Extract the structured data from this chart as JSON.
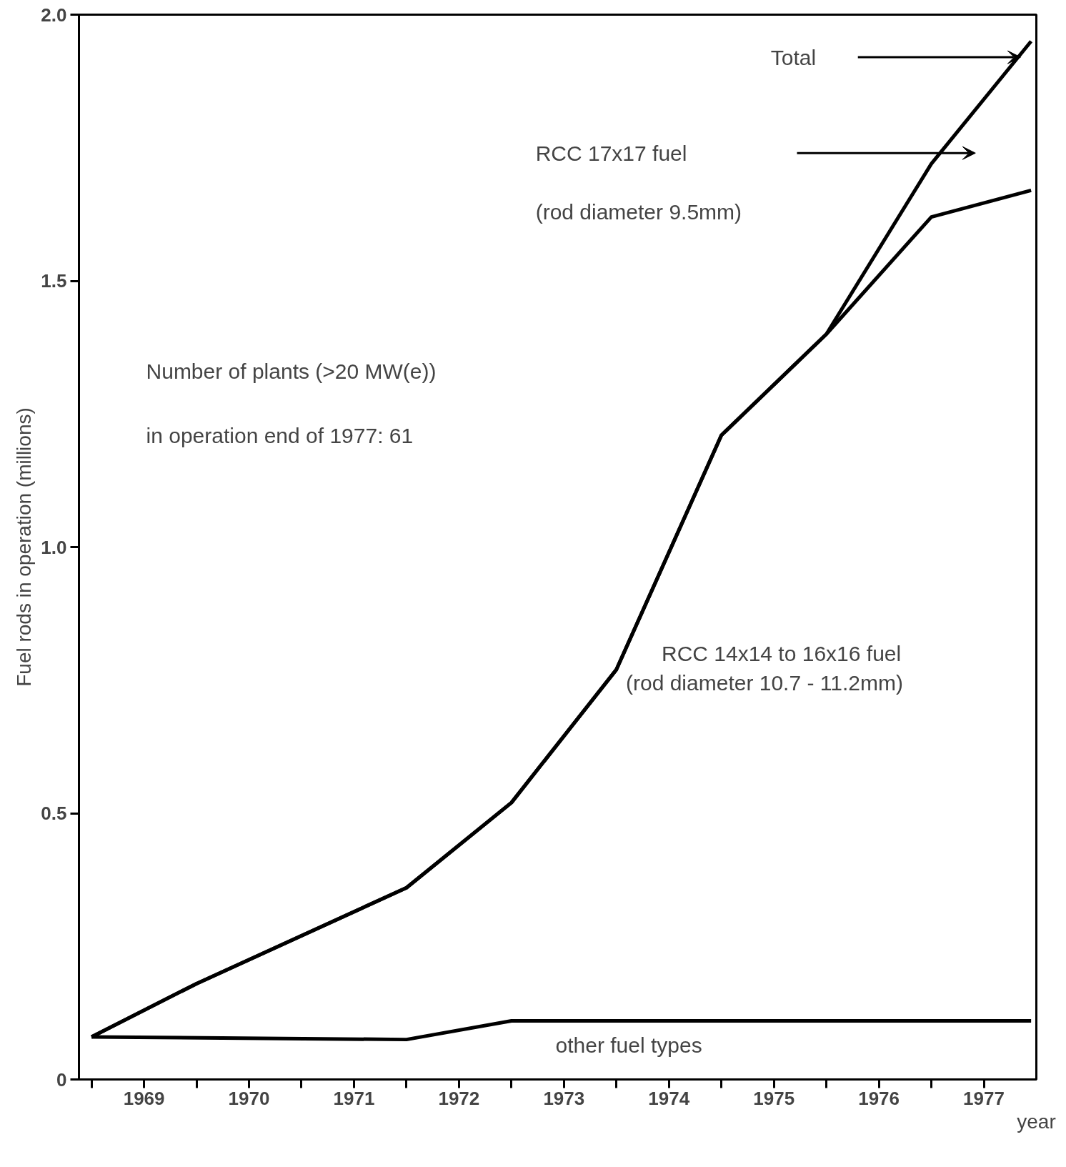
{
  "chart_data": {
    "type": "line",
    "ylabel": "Fuel rods in operation (millions)",
    "xlabel": "year",
    "xlim": [
      1968.88,
      1978.0
    ],
    "ylim": [
      0,
      2.0
    ],
    "xticks": [
      {
        "value": 1969,
        "label": null
      },
      {
        "value": 1969.5,
        "label": "1969"
      },
      {
        "value": 1970,
        "label": null
      },
      {
        "value": 1970.5,
        "label": "1970"
      },
      {
        "value": 1971,
        "label": null
      },
      {
        "value": 1971.5,
        "label": "1971"
      },
      {
        "value": 1972,
        "label": null
      },
      {
        "value": 1972.5,
        "label": "1972"
      },
      {
        "value": 1973,
        "label": null
      },
      {
        "value": 1973.5,
        "label": "1973"
      },
      {
        "value": 1974,
        "label": null
      },
      {
        "value": 1974.5,
        "label": "1974"
      },
      {
        "value": 1975,
        "label": null
      },
      {
        "value": 1975.5,
        "label": "1975"
      },
      {
        "value": 1976,
        "label": null
      },
      {
        "value": 1976.5,
        "label": "1976"
      },
      {
        "value": 1977,
        "label": null
      },
      {
        "value": 1977.5,
        "label": "1977"
      }
    ],
    "yticks": [
      0,
      0.5,
      {
        "value": 1.0,
        "label": "1.0"
      },
      1.5,
      {
        "value": 2.0,
        "label": "2.0"
      }
    ],
    "grid": false,
    "marker": "none",
    "line_style": "solid",
    "series": [
      {
        "color": "#000000",
        "x": [
          1969,
          1970,
          1972,
          1973,
          1974,
          1975,
          1976,
          1977,
          1977.95
        ],
        "values": [
          0.08,
          0.18,
          0.36,
          0.52,
          0.77,
          1.21,
          1.4,
          1.72,
          1.95
        ]
      },
      {
        "color": "#000000",
        "x": [
          1969,
          1970,
          1972,
          1973,
          1974,
          1975,
          1976,
          1977,
          1977.95
        ],
        "values": [
          0.08,
          0.18,
          0.36,
          0.52,
          0.77,
          1.21,
          1.4,
          1.62,
          1.67
        ]
      },
      {
        "color": "#000000",
        "x": [
          1969,
          1972,
          1973,
          1977.95
        ],
        "values": [
          0.08,
          0.075,
          0.11,
          0.11
        ]
      }
    ],
    "annotations": [
      "Total",
      "RCC 17x17 fuel",
      "(rod diameter 9.5mm)",
      "Number of plants (>20 MW(e))",
      "in operation end of 1977: 61",
      "RCC 14x14 to 16x16 fuel",
      "(rod diameter 10.7 - 11.2mm)",
      "other fuel types"
    ]
  }
}
